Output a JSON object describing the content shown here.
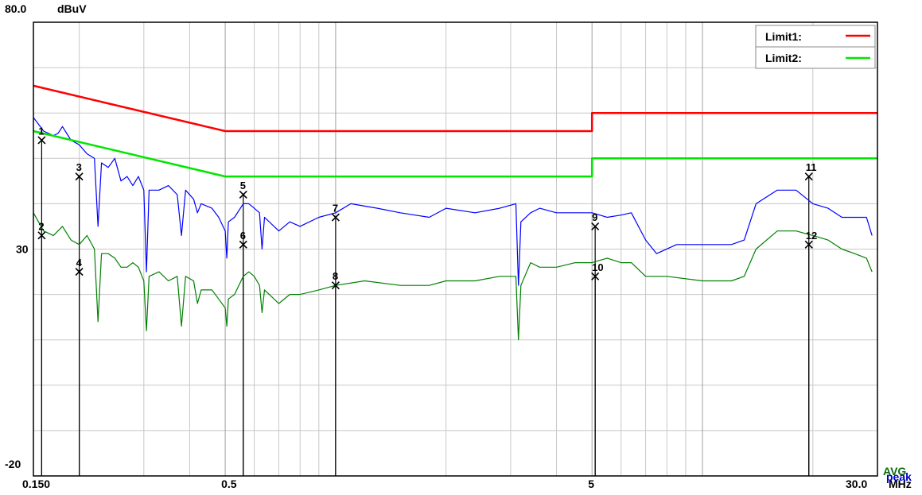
{
  "chart_data": {
    "type": "line",
    "y_unit": "dBuV",
    "x_unit": "MHz",
    "x_scale": "log",
    "xlim": [
      0.15,
      30.0
    ],
    "ylim": [
      -20,
      80
    ],
    "y_tick_labels": [
      "80.0",
      "30",
      "-20"
    ],
    "y_ticks": [
      80,
      30,
      -20
    ],
    "x_tick_labels": [
      "0.150",
      "0.5",
      "5",
      "30.0"
    ],
    "x_ticks": [
      0.15,
      0.5,
      5,
      30.0
    ],
    "grid": true,
    "legend_position": "top-right",
    "colors": {
      "limit1": "#ff0000",
      "limit2": "#00e600",
      "peak": "#0000ff",
      "avg": "#008000"
    },
    "corner_labels": {
      "avg": "AVG",
      "peak": "peak"
    },
    "series": [
      {
        "name": "Limit1:",
        "color": "#ff0000",
        "points": [
          [
            0.15,
            66
          ],
          [
            0.5,
            56
          ],
          [
            5,
            56
          ],
          [
            5,
            60
          ],
          [
            30,
            60
          ]
        ]
      },
      {
        "name": "Limit2:",
        "color": "#00e600",
        "points": [
          [
            0.15,
            56
          ],
          [
            0.5,
            46
          ],
          [
            5,
            46
          ],
          [
            5,
            50
          ],
          [
            30,
            50
          ]
        ]
      },
      {
        "name": "peak",
        "color": "#0000ff",
        "points": [
          [
            0.15,
            59
          ],
          [
            0.16,
            56
          ],
          [
            0.17,
            55
          ],
          [
            0.175,
            55.5
          ],
          [
            0.18,
            57
          ],
          [
            0.19,
            54
          ],
          [
            0.2,
            53
          ],
          [
            0.21,
            51
          ],
          [
            0.22,
            50
          ],
          [
            0.225,
            35
          ],
          [
            0.23,
            49
          ],
          [
            0.24,
            48
          ],
          [
            0.25,
            50
          ],
          [
            0.26,
            45
          ],
          [
            0.27,
            46
          ],
          [
            0.28,
            44
          ],
          [
            0.29,
            46
          ],
          [
            0.3,
            43
          ],
          [
            0.305,
            25
          ],
          [
            0.31,
            43
          ],
          [
            0.33,
            43
          ],
          [
            0.35,
            44
          ],
          [
            0.37,
            42
          ],
          [
            0.38,
            33
          ],
          [
            0.39,
            43
          ],
          [
            0.41,
            41
          ],
          [
            0.42,
            38
          ],
          [
            0.43,
            40
          ],
          [
            0.46,
            39
          ],
          [
            0.48,
            37
          ],
          [
            0.5,
            34
          ],
          [
            0.505,
            28
          ],
          [
            0.51,
            36
          ],
          [
            0.53,
            37
          ],
          [
            0.56,
            40
          ],
          [
            0.58,
            40
          ],
          [
            0.6,
            39
          ],
          [
            0.62,
            38
          ],
          [
            0.63,
            30
          ],
          [
            0.64,
            37
          ],
          [
            0.7,
            34
          ],
          [
            0.75,
            36
          ],
          [
            0.8,
            35
          ],
          [
            0.9,
            37
          ],
          [
            1.0,
            38
          ],
          [
            1.1,
            40
          ],
          [
            1.3,
            39
          ],
          [
            1.5,
            38
          ],
          [
            1.8,
            37
          ],
          [
            2.0,
            39
          ],
          [
            2.4,
            38
          ],
          [
            2.8,
            39
          ],
          [
            3.1,
            40
          ],
          [
            3.15,
            22
          ],
          [
            3.2,
            36
          ],
          [
            3.4,
            38
          ],
          [
            3.6,
            39
          ],
          [
            4.0,
            38
          ],
          [
            4.5,
            38
          ],
          [
            5.0,
            38
          ],
          [
            5.5,
            37
          ],
          [
            6.0,
            37.5
          ],
          [
            6.4,
            38
          ],
          [
            7.0,
            32
          ],
          [
            7.5,
            29
          ],
          [
            8.5,
            31
          ],
          [
            10,
            31
          ],
          [
            12,
            31
          ],
          [
            13,
            32
          ],
          [
            14,
            40
          ],
          [
            16,
            43
          ],
          [
            18,
            43
          ],
          [
            20,
            40
          ],
          [
            22,
            39
          ],
          [
            24,
            37
          ],
          [
            26,
            37
          ],
          [
            28,
            37
          ],
          [
            29,
            33
          ]
        ]
      },
      {
        "name": "AVG",
        "color": "#008000",
        "points": [
          [
            0.15,
            38
          ],
          [
            0.16,
            34
          ],
          [
            0.17,
            33
          ],
          [
            0.18,
            35
          ],
          [
            0.19,
            32
          ],
          [
            0.2,
            31
          ],
          [
            0.21,
            33
          ],
          [
            0.22,
            30
          ],
          [
            0.225,
            14
          ],
          [
            0.23,
            29
          ],
          [
            0.24,
            29
          ],
          [
            0.25,
            28
          ],
          [
            0.26,
            26
          ],
          [
            0.27,
            26
          ],
          [
            0.28,
            27
          ],
          [
            0.29,
            26
          ],
          [
            0.3,
            23
          ],
          [
            0.305,
            12
          ],
          [
            0.31,
            24
          ],
          [
            0.33,
            25
          ],
          [
            0.35,
            23
          ],
          [
            0.37,
            24
          ],
          [
            0.38,
            13
          ],
          [
            0.39,
            24
          ],
          [
            0.41,
            23
          ],
          [
            0.42,
            18
          ],
          [
            0.43,
            21
          ],
          [
            0.46,
            21
          ],
          [
            0.48,
            19
          ],
          [
            0.5,
            17
          ],
          [
            0.505,
            13
          ],
          [
            0.51,
            19
          ],
          [
            0.53,
            20
          ],
          [
            0.56,
            24
          ],
          [
            0.58,
            25
          ],
          [
            0.6,
            24
          ],
          [
            0.62,
            22
          ],
          [
            0.63,
            16
          ],
          [
            0.64,
            21
          ],
          [
            0.7,
            18
          ],
          [
            0.75,
            20
          ],
          [
            0.8,
            20
          ],
          [
            0.9,
            21
          ],
          [
            1.0,
            22
          ],
          [
            1.2,
            23
          ],
          [
            1.5,
            22
          ],
          [
            1.8,
            22
          ],
          [
            2.0,
            23
          ],
          [
            2.4,
            23
          ],
          [
            2.8,
            24
          ],
          [
            3.1,
            24
          ],
          [
            3.15,
            10
          ],
          [
            3.2,
            22
          ],
          [
            3.4,
            27
          ],
          [
            3.6,
            26
          ],
          [
            4.0,
            26
          ],
          [
            4.5,
            27
          ],
          [
            5.0,
            27
          ],
          [
            5.5,
            28
          ],
          [
            6.0,
            27
          ],
          [
            6.4,
            27
          ],
          [
            7.0,
            24
          ],
          [
            8,
            24
          ],
          [
            10,
            23
          ],
          [
            12,
            23
          ],
          [
            13,
            24
          ],
          [
            14,
            30
          ],
          [
            16,
            34
          ],
          [
            18,
            34
          ],
          [
            20,
            33
          ],
          [
            22,
            32
          ],
          [
            24,
            30
          ],
          [
            26,
            29
          ],
          [
            28,
            28
          ],
          [
            29,
            25
          ]
        ]
      }
    ],
    "markers": [
      {
        "label": "1",
        "x": 0.158,
        "y": 54
      },
      {
        "label": "2",
        "x": 0.158,
        "y": 33
      },
      {
        "label": "3",
        "x": 0.2,
        "y": 46
      },
      {
        "label": "4",
        "x": 0.2,
        "y": 25
      },
      {
        "label": "5",
        "x": 0.56,
        "y": 42
      },
      {
        "label": "6",
        "x": 0.56,
        "y": 31
      },
      {
        "label": "7",
        "x": 1.0,
        "y": 37
      },
      {
        "label": "8",
        "x": 1.0,
        "y": 22
      },
      {
        "label": "9",
        "x": 5.1,
        "y": 35
      },
      {
        "label": "10",
        "x": 5.1,
        "y": 24
      },
      {
        "label": "11",
        "x": 19.5,
        "y": 46
      },
      {
        "label": "12",
        "x": 19.5,
        "y": 31
      }
    ]
  }
}
